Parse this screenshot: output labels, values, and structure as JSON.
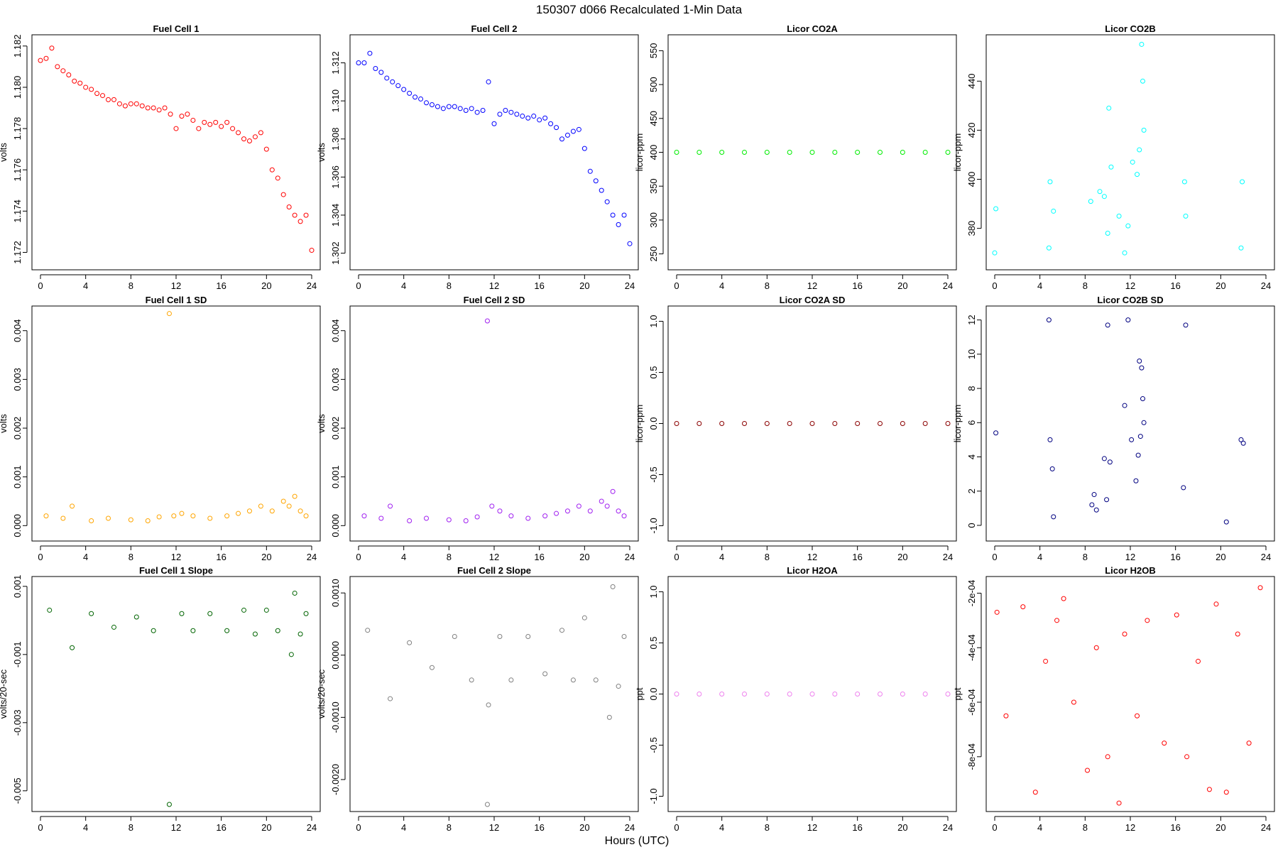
{
  "figure": {
    "title": "150307    d066    Recalculated 1-Min Data",
    "xlabel": "Hours (UTC)"
  },
  "chart_data": [
    {
      "type": "scatter",
      "title": "Fuel Cell 1",
      "ylabel": "volts",
      "color": "#ff0000",
      "xlim": [
        0,
        24
      ],
      "xticks": [
        0,
        4,
        8,
        12,
        16,
        20,
        24
      ],
      "ylim": [
        1.1715,
        1.1822
      ],
      "yticks": [
        "1.172",
        "1.174",
        "1.176",
        "1.178",
        "1.180",
        "1.182"
      ],
      "x": [
        0,
        0.5,
        1,
        1.5,
        2,
        2.5,
        3,
        3.5,
        4,
        4.5,
        5,
        5.5,
        6,
        6.5,
        7,
        7.5,
        8,
        8.5,
        9,
        9.5,
        10,
        10.5,
        11,
        11.5,
        12,
        12.5,
        13,
        13.5,
        14,
        14.5,
        15,
        15.5,
        16,
        16.5,
        17,
        17.5,
        18,
        18.5,
        19,
        19.5,
        20,
        20.5,
        21,
        21.5,
        22,
        22.5,
        23,
        23.5,
        24
      ],
      "y": [
        1.1813,
        1.1814,
        1.1819,
        1.181,
        1.1808,
        1.1806,
        1.1803,
        1.1802,
        1.18,
        1.1799,
        1.1797,
        1.1796,
        1.1794,
        1.1794,
        1.1792,
        1.1791,
        1.1792,
        1.1792,
        1.1791,
        1.179,
        1.179,
        1.1789,
        1.179,
        1.1787,
        1.178,
        1.1786,
        1.1787,
        1.1784,
        1.178,
        1.1783,
        1.1782,
        1.1783,
        1.1781,
        1.1783,
        1.178,
        1.1778,
        1.1775,
        1.1774,
        1.1776,
        1.1778,
        1.177,
        1.176,
        1.1756,
        1.1748,
        1.1742,
        1.1738,
        1.1735,
        1.1738,
        1.1721
      ]
    },
    {
      "type": "scatter",
      "title": "Fuel Cell 2",
      "ylabel": "volts",
      "color": "#0000ff",
      "xlim": [
        0,
        24
      ],
      "xticks": [
        0,
        4,
        8,
        12,
        16,
        20,
        24
      ],
      "ylim": [
        1.3015,
        1.3131
      ],
      "yticks": [
        "1.302",
        "1.304",
        "1.306",
        "1.308",
        "1.310",
        "1.312"
      ],
      "x": [
        0,
        0.5,
        1,
        1.5,
        2,
        2.5,
        3,
        3.5,
        4,
        4.5,
        5,
        5.5,
        6,
        6.5,
        7,
        7.5,
        8,
        8.5,
        9,
        9.5,
        10,
        10.5,
        11,
        11.5,
        12,
        12.5,
        13,
        13.5,
        14,
        14.5,
        15,
        15.5,
        16,
        16.5,
        17,
        17.5,
        18,
        18.5,
        19,
        19.5,
        20,
        20.5,
        21,
        21.5,
        22,
        22.5,
        23,
        23.5,
        24
      ],
      "y": [
        1.312,
        1.312,
        1.3125,
        1.3117,
        1.3115,
        1.3112,
        1.311,
        1.3108,
        1.3106,
        1.3104,
        1.3102,
        1.3101,
        1.3099,
        1.3098,
        1.3097,
        1.3096,
        1.3097,
        1.3097,
        1.3096,
        1.3095,
        1.3096,
        1.3094,
        1.3095,
        1.311,
        1.3088,
        1.3093,
        1.3095,
        1.3094,
        1.3093,
        1.3092,
        1.3091,
        1.3092,
        1.309,
        1.3091,
        1.3088,
        1.3086,
        1.308,
        1.3082,
        1.3084,
        1.3085,
        1.3075,
        1.3063,
        1.3058,
        1.3053,
        1.3047,
        1.304,
        1.3035,
        1.304,
        1.3025
      ]
    },
    {
      "type": "scatter",
      "title": "Licor CO2A",
      "ylabel": "licor-ppm",
      "color": "#00ee00",
      "xlim": [
        0,
        24
      ],
      "xticks": [
        0,
        4,
        8,
        12,
        16,
        20,
        24
      ],
      "ylim": [
        237,
        563
      ],
      "yticks": [
        "250",
        "300",
        "350",
        "400",
        "450",
        "500",
        "550"
      ],
      "x": [
        0,
        2,
        4,
        6,
        8,
        10,
        12,
        14,
        16,
        18,
        20,
        22,
        24
      ],
      "y": [
        400,
        400,
        400,
        400,
        400,
        400,
        400,
        400,
        400,
        400,
        400,
        400,
        400
      ]
    },
    {
      "type": "scatter",
      "title": "Licor CO2B",
      "ylabel": "licor-ppm",
      "color": "#00ffff",
      "xlim": [
        0,
        24
      ],
      "xticks": [
        0,
        4,
        8,
        12,
        16,
        20,
        24
      ],
      "ylim": [
        366,
        456
      ],
      "yticks": [
        "380",
        "400",
        "420",
        "440"
      ],
      "x": [
        0,
        0.1,
        4.8,
        4.9,
        5.2,
        8.5,
        9.3,
        9.7,
        10.0,
        10.1,
        10.3,
        11.0,
        11.5,
        11.8,
        12.2,
        12.6,
        12.8,
        13.0,
        13.1,
        13.2,
        16.8,
        16.9,
        21.8,
        21.9
      ],
      "y": [
        370,
        388,
        372,
        399,
        387,
        391,
        395,
        393,
        378,
        429,
        405,
        385,
        370,
        381,
        407,
        402,
        412,
        455,
        440,
        420,
        399,
        385,
        372,
        399
      ]
    },
    {
      "type": "scatter",
      "title": "Fuel Cell 1 SD",
      "ylabel": "volts",
      "color": "#ffa500",
      "xlim": [
        0,
        24
      ],
      "xticks": [
        0,
        4,
        8,
        12,
        16,
        20,
        24
      ],
      "ylim": [
        -0.00017,
        0.00436
      ],
      "yticks": [
        "0.000",
        "0.001",
        "0.002",
        "0.003",
        "0.004"
      ],
      "x": [
        0.5,
        2.0,
        2.8,
        4.5,
        6.0,
        8.0,
        9.5,
        10.5,
        11.4,
        11.8,
        12.5,
        13.5,
        15.0,
        16.5,
        17.5,
        18.5,
        19.5,
        20.5,
        21.5,
        22.0,
        22.5,
        23.0,
        23.5
      ],
      "y": [
        0.0002,
        0.00015,
        0.0004,
        0.0001,
        0.00015,
        0.00012,
        0.0001,
        0.00018,
        0.00435,
        0.0002,
        0.00025,
        0.0002,
        0.00015,
        0.0002,
        0.00025,
        0.0003,
        0.0004,
        0.0003,
        0.0005,
        0.0004,
        0.0006,
        0.0003,
        0.0002
      ]
    },
    {
      "type": "scatter",
      "title": "Fuel Cell 2 SD",
      "ylabel": "volts",
      "color": "#a020f0",
      "xlim": [
        0,
        24
      ],
      "xticks": [
        0,
        4,
        8,
        12,
        16,
        20,
        24
      ],
      "ylim": [
        -0.00017,
        0.00436
      ],
      "yticks": [
        "0.000",
        "0.001",
        "0.002",
        "0.003",
        "0.004"
      ],
      "x": [
        0.5,
        2.0,
        2.8,
        4.5,
        6.0,
        8.0,
        9.5,
        10.5,
        11.4,
        11.8,
        12.5,
        13.5,
        15.0,
        16.5,
        17.5,
        18.5,
        19.5,
        20.5,
        21.5,
        22.0,
        22.5,
        23.0,
        23.5
      ],
      "y": [
        0.0002,
        0.00015,
        0.0004,
        0.0001,
        0.00015,
        0.00012,
        0.0001,
        0.00018,
        0.0042,
        0.0004,
        0.0003,
        0.0002,
        0.00015,
        0.0002,
        0.00025,
        0.0003,
        0.0004,
        0.0003,
        0.0005,
        0.0004,
        0.0007,
        0.0003,
        0.0002
      ]
    },
    {
      "type": "scatter",
      "title": "Licor CO2A SD",
      "ylabel": "licor-ppm",
      "color": "#8b0000",
      "xlim": [
        0,
        24
      ],
      "xticks": [
        0,
        4,
        8,
        12,
        16,
        20,
        24
      ],
      "ylim": [
        -1.08,
        1.08
      ],
      "yticks": [
        "-1.0",
        "-0.5",
        "0.0",
        "0.5",
        "1.0"
      ],
      "x": [
        0,
        2,
        4,
        6,
        8,
        10,
        12,
        14,
        16,
        18,
        20,
        22,
        24
      ],
      "y": [
        0,
        0,
        0,
        0,
        0,
        0,
        0,
        0,
        0,
        0,
        0,
        0,
        0
      ]
    },
    {
      "type": "scatter",
      "title": "Licor CO2B SD",
      "ylabel": "licor-ppm",
      "color": "#000080",
      "xlim": [
        0,
        24
      ],
      "xticks": [
        0,
        4,
        8,
        12,
        16,
        20,
        24
      ],
      "ylim": [
        -0.5,
        12.4
      ],
      "yticks": [
        "0",
        "2",
        "4",
        "6",
        "8",
        "10",
        "12"
      ],
      "x": [
        0.1,
        4.8,
        4.9,
        5.1,
        5.2,
        8.6,
        8.8,
        9.0,
        9.7,
        9.9,
        10.0,
        10.2,
        11.5,
        11.8,
        12.1,
        12.5,
        12.7,
        12.8,
        12.9,
        13.0,
        13.1,
        13.2,
        16.7,
        16.9,
        20.5,
        21.8,
        22.0
      ],
      "y": [
        5.4,
        12.0,
        5.0,
        3.3,
        0.5,
        1.2,
        1.8,
        0.9,
        3.9,
        1.5,
        11.7,
        3.7,
        7.0,
        12.0,
        5.0,
        2.6,
        4.1,
        9.6,
        5.2,
        9.2,
        7.4,
        6.0,
        2.2,
        11.7,
        0.2,
        5.0,
        4.8
      ]
    },
    {
      "type": "scatter",
      "title": "Fuel Cell 1 Slope",
      "ylabel": "volts/20-sec",
      "color": "#006400",
      "xlim": [
        0,
        24
      ],
      "xticks": [
        0,
        4,
        8,
        12,
        16,
        20,
        24
      ],
      "ylim": [
        -0.0054,
        0.00108
      ],
      "yticks": [
        "-0.005",
        "-0.003",
        "-0.001",
        "0.001"
      ],
      "x": [
        0.8,
        2.8,
        4.5,
        6.5,
        8.5,
        10.0,
        11.4,
        12.5,
        13.5,
        15.0,
        16.5,
        18.0,
        19.0,
        20.0,
        21.0,
        22.2,
        22.5,
        23.0,
        23.5
      ],
      "y": [
        0.0003,
        -0.0008,
        0.0002,
        -0.0002,
        0.0001,
        -0.0003,
        -0.0054,
        0.0002,
        -0.0003,
        0.0002,
        -0.0003,
        0.0003,
        -0.0004,
        0.0003,
        -0.0003,
        -0.001,
        0.0008,
        -0.0004,
        0.0002
      ]
    },
    {
      "type": "scatter",
      "title": "Fuel Cell 2 Slope",
      "ylabel": "volts/20-sec",
      "color": "#808080",
      "xlim": [
        0,
        24
      ],
      "xticks": [
        0,
        4,
        8,
        12,
        16,
        20,
        24
      ],
      "ylim": [
        -0.0024,
        0.00115
      ],
      "yticks": [
        "-0.0020",
        "-0.0010",
        "0.0000",
        "0.0010"
      ],
      "x": [
        0.8,
        2.8,
        4.5,
        6.5,
        8.5,
        10.0,
        11.4,
        11.5,
        12.5,
        13.5,
        15.0,
        16.5,
        18.0,
        19.0,
        20.0,
        21.0,
        22.2,
        22.5,
        23.0,
        23.5
      ],
      "y": [
        0.0004,
        -0.0007,
        0.0002,
        -0.0002,
        0.0003,
        -0.0004,
        -0.0024,
        -0.0008,
        0.0003,
        -0.0004,
        0.0003,
        -0.0003,
        0.0004,
        -0.0004,
        0.0006,
        -0.0004,
        -0.001,
        0.0011,
        -0.0005,
        0.0003
      ]
    },
    {
      "type": "scatter",
      "title": "Licor H2OA",
      "ylabel": "ppt",
      "color": "#ee82ee",
      "xlim": [
        0,
        24
      ],
      "xticks": [
        0,
        4,
        8,
        12,
        16,
        20,
        24
      ],
      "ylim": [
        -1.08,
        1.08
      ],
      "yticks": [
        "-1.0",
        "-0.5",
        "0.0",
        "0.5",
        "1.0"
      ],
      "x": [
        0,
        2,
        4,
        6,
        8,
        10,
        12,
        14,
        16,
        18,
        20,
        22,
        24
      ],
      "y": [
        0,
        0,
        0,
        0,
        0,
        0,
        0,
        0,
        0,
        0,
        0,
        0,
        0
      ]
    },
    {
      "type": "scatter",
      "title": "Licor H2OB",
      "ylabel": "ppt",
      "color": "#ff0000",
      "xlim": [
        0,
        24
      ],
      "xticks": [
        0,
        4,
        8,
        12,
        16,
        20,
        24
      ],
      "ylim": [
        -0.000975,
        -0.000165
      ],
      "yticks": [
        "-8e-04",
        "-6e-04",
        "-4e-04",
        "-2e-04"
      ],
      "x": [
        0.2,
        1.0,
        2.5,
        3.6,
        4.5,
        5.5,
        6.1,
        7.0,
        8.2,
        9.0,
        10.0,
        11.0,
        11.5,
        12.6,
        13.5,
        15.0,
        16.1,
        17.0,
        18.0,
        19.0,
        19.6,
        20.5,
        21.5,
        22.5,
        23.5
      ],
      "y": [
        -0.00027,
        -0.00065,
        -0.00025,
        -0.00093,
        -0.00045,
        -0.0003,
        -0.00022,
        -0.0006,
        -0.00085,
        -0.0004,
        -0.0008,
        -0.00097,
        -0.00035,
        -0.00065,
        -0.0003,
        -0.00075,
        -0.00028,
        -0.0008,
        -0.00045,
        -0.00092,
        -0.00024,
        -0.00093,
        -0.00035,
        -0.00075,
        -0.00018
      ]
    }
  ]
}
